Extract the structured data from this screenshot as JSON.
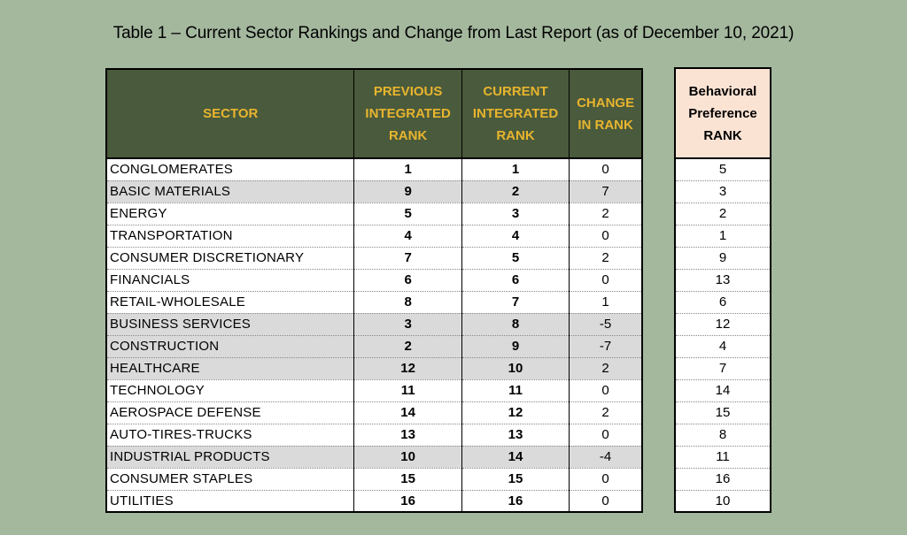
{
  "title": "Table 1 – Current Sector Rankings and Change from Last Report (as of December 10, 2021)",
  "colors": {
    "background": "#a4b89e",
    "header_fill": "#4a5a3c",
    "header_text": "#e8b52e",
    "preference_header_fill": "#fbe3d4",
    "shaded_row": "#dadada"
  },
  "main_table": {
    "headers": {
      "sector": "SECTOR",
      "previous": [
        "PREVIOUS",
        "INTEGRATED",
        "RANK"
      ],
      "current": [
        "CURRENT",
        "INTEGRATED",
        "RANK"
      ],
      "change": [
        "CHANGE",
        "IN RANK"
      ]
    },
    "rows": [
      {
        "sector": "CONGLOMERATES",
        "previous": "1",
        "current": "1",
        "change": "0",
        "shaded": false
      },
      {
        "sector": "BASIC MATERIALS",
        "previous": "9",
        "current": "2",
        "change": "7",
        "shaded": true
      },
      {
        "sector": "ENERGY",
        "previous": "5",
        "current": "3",
        "change": "2",
        "shaded": false
      },
      {
        "sector": "TRANSPORTATION",
        "previous": "4",
        "current": "4",
        "change": "0",
        "shaded": false
      },
      {
        "sector": "CONSUMER DISCRETIONARY",
        "previous": "7",
        "current": "5",
        "change": "2",
        "shaded": false
      },
      {
        "sector": "FINANCIALS",
        "previous": "6",
        "current": "6",
        "change": "0",
        "shaded": false
      },
      {
        "sector": "RETAIL-WHOLESALE",
        "previous": "8",
        "current": "7",
        "change": "1",
        "shaded": false
      },
      {
        "sector": "BUSINESS SERVICES",
        "previous": "3",
        "current": "8",
        "change": "-5",
        "shaded": true
      },
      {
        "sector": "CONSTRUCTION",
        "previous": "2",
        "current": "9",
        "change": "-7",
        "shaded": true
      },
      {
        "sector": "HEALTHCARE",
        "previous": "12",
        "current": "10",
        "change": "2",
        "shaded": true
      },
      {
        "sector": "TECHNOLOGY",
        "previous": "11",
        "current": "11",
        "change": "0",
        "shaded": false
      },
      {
        "sector": "AEROSPACE DEFENSE",
        "previous": "14",
        "current": "12",
        "change": "2",
        "shaded": false
      },
      {
        "sector": "AUTO-TIRES-TRUCKS",
        "previous": "13",
        "current": "13",
        "change": "0",
        "shaded": false
      },
      {
        "sector": "INDUSTRIAL PRODUCTS",
        "previous": "10",
        "current": "14",
        "change": "-4",
        "shaded": true
      },
      {
        "sector": "CONSUMER STAPLES",
        "previous": "15",
        "current": "15",
        "change": "0",
        "shaded": false
      },
      {
        "sector": "UTILITIES",
        "previous": "16",
        "current": "16",
        "change": "0",
        "shaded": false
      }
    ]
  },
  "preference_table": {
    "header": [
      "Behavioral",
      "Preference",
      "RANK"
    ],
    "ranks": [
      "5",
      "3",
      "2",
      "1",
      "9",
      "13",
      "6",
      "12",
      "4",
      "7",
      "14",
      "15",
      "8",
      "11",
      "16",
      "10"
    ]
  }
}
